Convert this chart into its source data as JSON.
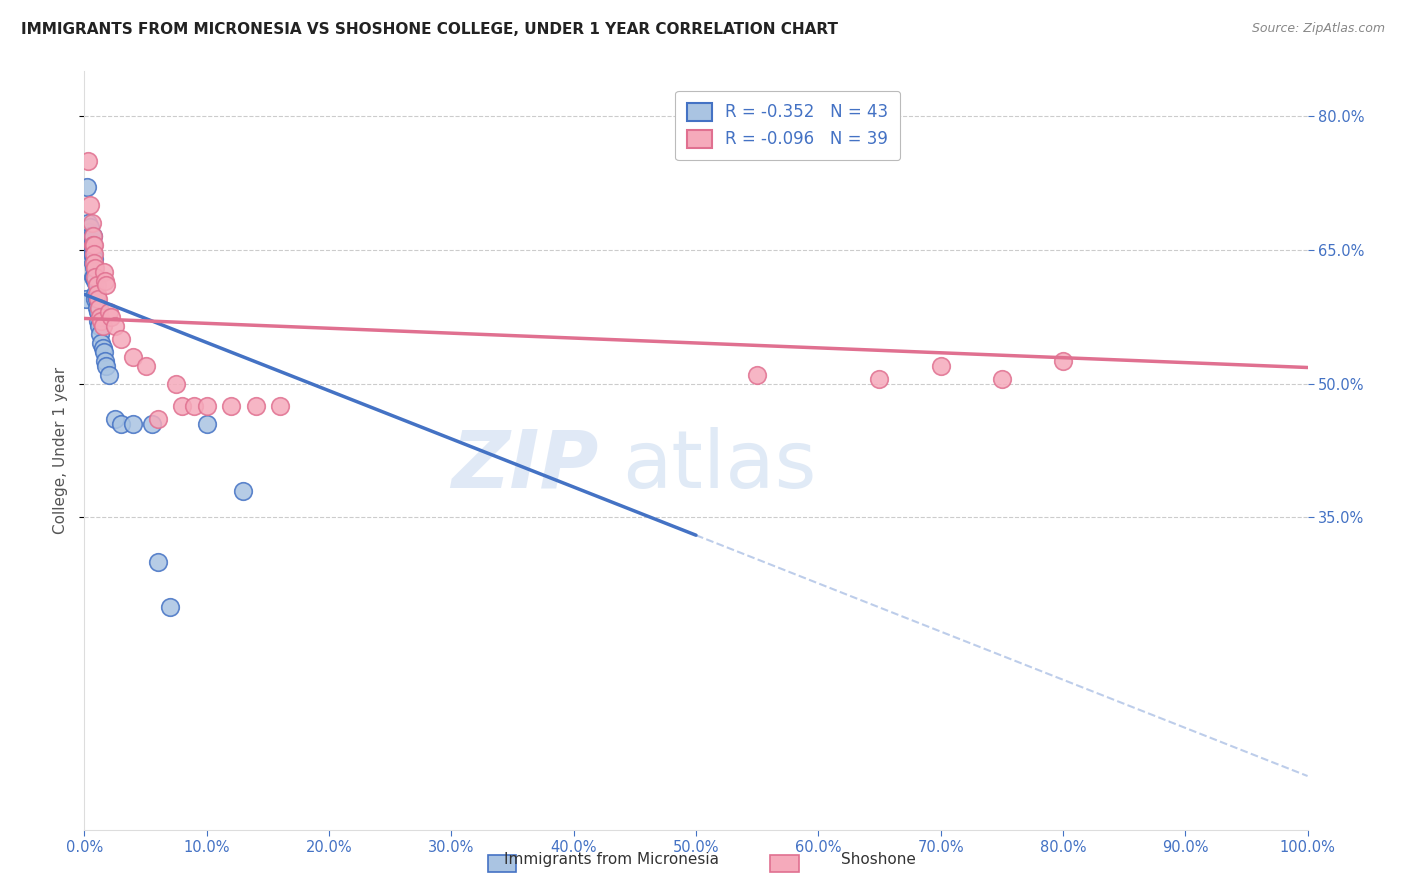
{
  "title": "IMMIGRANTS FROM MICRONESIA VS SHOSHONE COLLEGE, UNDER 1 YEAR CORRELATION CHART",
  "source": "Source: ZipAtlas.com",
  "ylabel": "College, Under 1 year",
  "legend_label_blue": "Immigrants from Micronesia",
  "legend_label_pink": "Shoshone",
  "legend_r_blue": "-0.352",
  "legend_n_blue": "43",
  "legend_r_pink": "-0.096",
  "legend_n_pink": "39",
  "watermark_zip": "ZIP",
  "watermark_atlas": "atlas",
  "blue_color": "#aac4e2",
  "pink_color": "#f5aabb",
  "trend_blue": "#4472c4",
  "trend_pink": "#e07090",
  "blue_x": [
    0.001,
    0.002,
    0.003,
    0.004,
    0.004,
    0.005,
    0.005,
    0.005,
    0.006,
    0.006,
    0.006,
    0.006,
    0.007,
    0.007,
    0.007,
    0.007,
    0.007,
    0.008,
    0.008,
    0.008,
    0.009,
    0.009,
    0.009,
    0.01,
    0.01,
    0.011,
    0.011,
    0.012,
    0.013,
    0.014,
    0.015,
    0.016,
    0.017,
    0.018,
    0.02,
    0.025,
    0.03,
    0.04,
    0.055,
    0.06,
    0.07,
    0.1,
    0.13
  ],
  "blue_y": [
    0.595,
    0.72,
    0.68,
    0.67,
    0.66,
    0.675,
    0.665,
    0.655,
    0.665,
    0.66,
    0.655,
    0.645,
    0.665,
    0.655,
    0.645,
    0.635,
    0.62,
    0.64,
    0.63,
    0.62,
    0.615,
    0.6,
    0.595,
    0.595,
    0.585,
    0.58,
    0.57,
    0.565,
    0.555,
    0.545,
    0.54,
    0.535,
    0.525,
    0.52,
    0.51,
    0.46,
    0.455,
    0.455,
    0.455,
    0.3,
    0.25,
    0.455,
    0.38
  ],
  "pink_x": [
    0.003,
    0.005,
    0.006,
    0.007,
    0.007,
    0.008,
    0.008,
    0.008,
    0.009,
    0.009,
    0.01,
    0.01,
    0.011,
    0.012,
    0.013,
    0.014,
    0.015,
    0.016,
    0.017,
    0.018,
    0.02,
    0.022,
    0.025,
    0.03,
    0.04,
    0.05,
    0.06,
    0.075,
    0.08,
    0.09,
    0.1,
    0.12,
    0.14,
    0.16,
    0.55,
    0.65,
    0.7,
    0.75,
    0.8
  ],
  "pink_y": [
    0.75,
    0.7,
    0.68,
    0.665,
    0.655,
    0.655,
    0.645,
    0.635,
    0.63,
    0.62,
    0.61,
    0.6,
    0.595,
    0.585,
    0.575,
    0.57,
    0.565,
    0.625,
    0.615,
    0.61,
    0.58,
    0.575,
    0.565,
    0.55,
    0.53,
    0.52,
    0.46,
    0.5,
    0.475,
    0.475,
    0.475,
    0.475,
    0.475,
    0.475,
    0.51,
    0.505,
    0.52,
    0.505,
    0.525
  ],
  "xlim": [
    0.0,
    1.0
  ],
  "ylim": [
    0.0,
    0.85
  ],
  "xticks": [
    0.0,
    0.1,
    0.2,
    0.3,
    0.4,
    0.5,
    0.6,
    0.7,
    0.8,
    0.9,
    1.0
  ],
  "yticks_right": [
    0.35,
    0.5,
    0.65,
    0.8
  ],
  "ytick_labels": [
    "35.0%",
    "50.0%",
    "65.0%",
    "80.0%"
  ],
  "xtick_labels": [
    "0.0%",
    "10.0%",
    "20.0%",
    "30.0%",
    "40.0%",
    "50.0%",
    "60.0%",
    "70.0%",
    "80.0%",
    "90.0%",
    "100.0%"
  ],
  "grid_color": "#cccccc",
  "bg_color": "#ffffff",
  "title_color": "#222222",
  "axis_color": "#4472c4",
  "blue_trend_x_start": 0.0,
  "blue_trend_x_solid_end": 0.5,
  "pink_trend_x_start": 0.0,
  "pink_trend_x_end": 1.0
}
